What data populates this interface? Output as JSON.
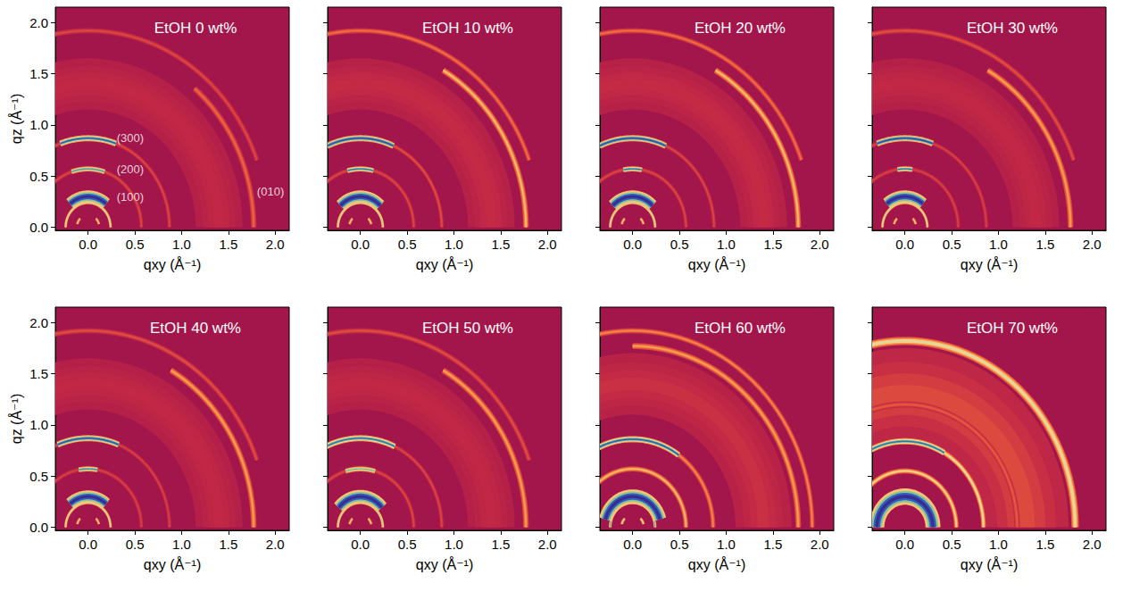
{
  "chart_data": [
    {
      "type": "giwaxs",
      "title": "EtOH 0 wt%",
      "xlabel": "qxy (Å⁻¹)",
      "ylabel": "qz (Å⁻¹)",
      "xlim": [
        -0.35,
        2.15
      ],
      "ylim": [
        -0.03,
        2.15
      ],
      "xticks": [
        {
          "value": 0,
          "label": "0.0"
        },
        0.5,
        {
          "value": 1,
          "label": "1.0"
        },
        1.5,
        {
          "value": 2,
          "label": "2.0"
        }
      ],
      "yticks": [
        {
          "value": 0,
          "label": "0.0"
        },
        0.5,
        {
          "value": 1,
          "label": "1.0"
        },
        1.5,
        {
          "value": 2,
          "label": "2.0"
        }
      ],
      "features": [
        {
          "q": 1.4,
          "width": 0.5,
          "az": [
            0,
            180
          ],
          "intensity": 0.18
        },
        {
          "q": 0.12,
          "width": 0.03,
          "az": [
            15,
            45
          ],
          "intensity": 0.6
        },
        {
          "q": 0.12,
          "width": 0.03,
          "az": [
            135,
            165
          ],
          "intensity": 0.6
        },
        {
          "q": 0.24,
          "width": 0.03,
          "az": [
            0,
            180
          ],
          "intensity": 0.7
        },
        {
          "q": 0.3,
          "width": 0.12,
          "az": [
            50,
            130
          ],
          "intensity": 1.0
        },
        {
          "q": 0.57,
          "width": 0.04,
          "az": [
            0,
            180
          ],
          "intensity": 0.3
        },
        {
          "q": 0.57,
          "width": 0.05,
          "az": [
            72,
            108
          ],
          "intensity": 0.8
        },
        {
          "q": 0.87,
          "width": 0.04,
          "az": [
            0,
            180
          ],
          "intensity": 0.3
        },
        {
          "q": 0.87,
          "width": 0.06,
          "az": [
            70,
            110
          ],
          "intensity": 0.88
        },
        {
          "q": 1.77,
          "width": 0.06,
          "az": [
            0,
            50
          ],
          "intensity": 0.38
        },
        {
          "q": 1.92,
          "width": 0.05,
          "az": [
            20,
            180
          ],
          "intensity": 0.3
        }
      ],
      "annotations": [
        {
          "text": "(300)",
          "x": 0.45,
          "y": 0.87
        },
        {
          "text": "(200)",
          "x": 0.45,
          "y": 0.57
        },
        {
          "text": "(100)",
          "x": 0.45,
          "y": 0.3
        },
        {
          "text": "(010)",
          "x": 1.95,
          "y": 0.35
        }
      ]
    },
    {
      "type": "giwaxs",
      "title": "EtOH 10 wt%",
      "xlabel": "qxy (Å⁻¹)",
      "tick_labels": "x",
      "xlim": [
        -0.35,
        2.15
      ],
      "ylim": [
        -0.03,
        2.15
      ],
      "xticks": [
        {
          "value": 0,
          "label": "0.0"
        },
        0.5,
        {
          "value": 1,
          "label": "1.0"
        },
        1.5,
        {
          "value": 2,
          "label": "2.0"
        }
      ],
      "yticks": [
        {
          "value": 0,
          "label": "0.0"
        },
        0.5,
        {
          "value": 1,
          "label": "1.0"
        },
        1.5,
        {
          "value": 2,
          "label": "2.0"
        }
      ],
      "features": [
        {
          "q": 1.4,
          "width": 0.5,
          "az": [
            0,
            180
          ],
          "intensity": 0.2
        },
        {
          "q": 0.12,
          "width": 0.03,
          "az": [
            15,
            45
          ],
          "intensity": 0.6
        },
        {
          "q": 0.12,
          "width": 0.03,
          "az": [
            135,
            165
          ],
          "intensity": 0.6
        },
        {
          "q": 0.24,
          "width": 0.03,
          "az": [
            0,
            180
          ],
          "intensity": 0.72
        },
        {
          "q": 0.3,
          "width": 0.12,
          "az": [
            45,
            135
          ],
          "intensity": 1.0
        },
        {
          "q": 0.57,
          "width": 0.04,
          "az": [
            0,
            180
          ],
          "intensity": 0.3
        },
        {
          "q": 0.57,
          "width": 0.05,
          "az": [
            76,
            104
          ],
          "intensity": 0.85
        },
        {
          "q": 0.87,
          "width": 0.04,
          "az": [
            0,
            180
          ],
          "intensity": 0.32
        },
        {
          "q": 0.87,
          "width": 0.06,
          "az": [
            66,
            114
          ],
          "intensity": 0.92
        },
        {
          "q": 1.77,
          "width": 0.06,
          "az": [
            0,
            60
          ],
          "intensity": 0.55
        },
        {
          "q": 1.92,
          "width": 0.05,
          "az": [
            20,
            180
          ],
          "intensity": 0.4
        }
      ],
      "annotations": []
    },
    {
      "type": "giwaxs",
      "title": "EtOH 20 wt%",
      "xlabel": "qxy (Å⁻¹)",
      "tick_labels": "x",
      "xlim": [
        -0.35,
        2.15
      ],
      "ylim": [
        -0.03,
        2.15
      ],
      "xticks": [
        {
          "value": 0,
          "label": "0.0"
        },
        0.5,
        {
          "value": 1,
          "label": "1.0"
        },
        1.5,
        {
          "value": 2,
          "label": "2.0"
        }
      ],
      "yticks": [
        {
          "value": 0,
          "label": "0.0"
        },
        0.5,
        {
          "value": 1,
          "label": "1.0"
        },
        1.5,
        {
          "value": 2,
          "label": "2.0"
        }
      ],
      "features": [
        {
          "q": 1.4,
          "width": 0.5,
          "az": [
            0,
            180
          ],
          "intensity": 0.2
        },
        {
          "q": 0.12,
          "width": 0.03,
          "az": [
            15,
            45
          ],
          "intensity": 0.6
        },
        {
          "q": 0.12,
          "width": 0.03,
          "az": [
            135,
            165
          ],
          "intensity": 0.6
        },
        {
          "q": 0.24,
          "width": 0.03,
          "az": [
            0,
            180
          ],
          "intensity": 0.72
        },
        {
          "q": 0.3,
          "width": 0.12,
          "az": [
            45,
            135
          ],
          "intensity": 1.0
        },
        {
          "q": 0.57,
          "width": 0.04,
          "az": [
            0,
            180
          ],
          "intensity": 0.3
        },
        {
          "q": 0.57,
          "width": 0.05,
          "az": [
            80,
            100
          ],
          "intensity": 0.85
        },
        {
          "q": 0.87,
          "width": 0.04,
          "az": [
            0,
            180
          ],
          "intensity": 0.3
        },
        {
          "q": 0.87,
          "width": 0.06,
          "az": [
            66,
            114
          ],
          "intensity": 0.92
        },
        {
          "q": 1.77,
          "width": 0.06,
          "az": [
            0,
            60
          ],
          "intensity": 0.55
        },
        {
          "q": 1.92,
          "width": 0.05,
          "az": [
            20,
            180
          ],
          "intensity": 0.4
        }
      ],
      "annotations": []
    },
    {
      "type": "giwaxs",
      "title": "EtOH 30 wt%",
      "xlabel": "qxy (Å⁻¹)",
      "tick_labels": "x",
      "xlim": [
        -0.35,
        2.15
      ],
      "ylim": [
        -0.03,
        2.15
      ],
      "xticks": [
        {
          "value": 0,
          "label": "0.0"
        },
        0.5,
        {
          "value": 1,
          "label": "1.0"
        },
        1.5,
        {
          "value": 2,
          "label": "2.0"
        }
      ],
      "yticks": [
        {
          "value": 0,
          "label": "0.0"
        },
        0.5,
        {
          "value": 1,
          "label": "1.0"
        },
        1.5,
        {
          "value": 2,
          "label": "2.0"
        }
      ],
      "features": [
        {
          "q": 1.4,
          "width": 0.5,
          "az": [
            0,
            180
          ],
          "intensity": 0.18
        },
        {
          "q": 0.12,
          "width": 0.03,
          "az": [
            15,
            45
          ],
          "intensity": 0.6
        },
        {
          "q": 0.12,
          "width": 0.03,
          "az": [
            135,
            165
          ],
          "intensity": 0.6
        },
        {
          "q": 0.24,
          "width": 0.03,
          "az": [
            0,
            180
          ],
          "intensity": 0.7
        },
        {
          "q": 0.3,
          "width": 0.12,
          "az": [
            50,
            130
          ],
          "intensity": 1.0
        },
        {
          "q": 0.57,
          "width": 0.04,
          "az": [
            0,
            180
          ],
          "intensity": 0.28
        },
        {
          "q": 0.57,
          "width": 0.05,
          "az": [
            82,
            98
          ],
          "intensity": 0.85
        },
        {
          "q": 0.87,
          "width": 0.04,
          "az": [
            0,
            180
          ],
          "intensity": 0.28
        },
        {
          "q": 0.87,
          "width": 0.06,
          "az": [
            70,
            110
          ],
          "intensity": 0.92
        },
        {
          "q": 1.77,
          "width": 0.06,
          "az": [
            0,
            60
          ],
          "intensity": 0.5
        },
        {
          "q": 1.92,
          "width": 0.05,
          "az": [
            20,
            180
          ],
          "intensity": 0.32
        }
      ],
      "annotations": []
    },
    {
      "type": "giwaxs",
      "title": "EtOH 40 wt%",
      "xlabel": "qxy (Å⁻¹)",
      "ylabel": "qz (Å⁻¹)",
      "xlim": [
        -0.35,
        2.15
      ],
      "ylim": [
        -0.03,
        2.15
      ],
      "xticks": [
        {
          "value": 0,
          "label": "0.0"
        },
        0.5,
        {
          "value": 1,
          "label": "1.0"
        },
        1.5,
        {
          "value": 2,
          "label": "2.0"
        }
      ],
      "yticks": [
        {
          "value": 0,
          "label": "0.0"
        },
        0.5,
        {
          "value": 1,
          "label": "1.0"
        },
        1.5,
        {
          "value": 2,
          "label": "2.0"
        }
      ],
      "features": [
        {
          "q": 1.4,
          "width": 0.5,
          "az": [
            0,
            180
          ],
          "intensity": 0.18
        },
        {
          "q": 0.12,
          "width": 0.03,
          "az": [
            15,
            45
          ],
          "intensity": 0.6
        },
        {
          "q": 0.12,
          "width": 0.03,
          "az": [
            135,
            165
          ],
          "intensity": 0.6
        },
        {
          "q": 0.24,
          "width": 0.03,
          "az": [
            0,
            180
          ],
          "intensity": 0.7
        },
        {
          "q": 0.3,
          "width": 0.12,
          "az": [
            50,
            130
          ],
          "intensity": 1.0
        },
        {
          "q": 0.57,
          "width": 0.04,
          "az": [
            0,
            180
          ],
          "intensity": 0.28
        },
        {
          "q": 0.57,
          "width": 0.05,
          "az": [
            80,
            100
          ],
          "intensity": 0.82
        },
        {
          "q": 0.87,
          "width": 0.04,
          "az": [
            0,
            180
          ],
          "intensity": 0.28
        },
        {
          "q": 0.87,
          "width": 0.06,
          "az": [
            68,
            112
          ],
          "intensity": 0.9
        },
        {
          "q": 1.77,
          "width": 0.06,
          "az": [
            0,
            60
          ],
          "intensity": 0.5
        },
        {
          "q": 1.92,
          "width": 0.05,
          "az": [
            20,
            180
          ],
          "intensity": 0.32
        }
      ],
      "annotations": []
    },
    {
      "type": "giwaxs",
      "title": "EtOH 50 wt%",
      "xlabel": "qxy (Å⁻¹)",
      "tick_labels": "x",
      "xlim": [
        -0.35,
        2.15
      ],
      "ylim": [
        -0.03,
        2.15
      ],
      "xticks": [
        {
          "value": 0,
          "label": "0.0"
        },
        0.5,
        {
          "value": 1,
          "label": "1.0"
        },
        1.5,
        {
          "value": 2,
          "label": "2.0"
        }
      ],
      "yticks": [
        {
          "value": 0,
          "label": "0.0"
        },
        0.5,
        {
          "value": 1,
          "label": "1.0"
        },
        1.5,
        {
          "value": 2,
          "label": "2.0"
        }
      ],
      "features": [
        {
          "q": 1.4,
          "width": 0.5,
          "az": [
            0,
            180
          ],
          "intensity": 0.18
        },
        {
          "q": 0.12,
          "width": 0.03,
          "az": [
            15,
            45
          ],
          "intensity": 0.6
        },
        {
          "q": 0.12,
          "width": 0.03,
          "az": [
            135,
            165
          ],
          "intensity": 0.6
        },
        {
          "q": 0.24,
          "width": 0.03,
          "az": [
            0,
            180
          ],
          "intensity": 0.72
        },
        {
          "q": 0.3,
          "width": 0.13,
          "az": [
            40,
            140
          ],
          "intensity": 1.0
        },
        {
          "q": 0.57,
          "width": 0.04,
          "az": [
            0,
            180
          ],
          "intensity": 0.3
        },
        {
          "q": 0.57,
          "width": 0.05,
          "az": [
            74,
            106
          ],
          "intensity": 0.75
        },
        {
          "q": 0.87,
          "width": 0.04,
          "az": [
            0,
            180
          ],
          "intensity": 0.3
        },
        {
          "q": 0.87,
          "width": 0.06,
          "az": [
            65,
            115
          ],
          "intensity": 0.85
        },
        {
          "q": 1.77,
          "width": 0.06,
          "az": [
            0,
            60
          ],
          "intensity": 0.5
        },
        {
          "q": 1.92,
          "width": 0.05,
          "az": [
            20,
            180
          ],
          "intensity": 0.32
        }
      ],
      "annotations": []
    },
    {
      "type": "giwaxs",
      "title": "EtOH 60 wt%",
      "xlabel": "qxy (Å⁻¹)",
      "tick_labels": "x",
      "xlim": [
        -0.35,
        2.15
      ],
      "ylim": [
        -0.03,
        2.15
      ],
      "xticks": [
        {
          "value": 0,
          "label": "0.0"
        },
        0.5,
        {
          "value": 1,
          "label": "1.0"
        },
        1.5,
        {
          "value": 2,
          "label": "2.0"
        }
      ],
      "yticks": [
        {
          "value": 0,
          "label": "0.0"
        },
        0.5,
        {
          "value": 1,
          "label": "1.0"
        },
        1.5,
        {
          "value": 2,
          "label": "2.0"
        }
      ],
      "features": [
        {
          "q": 1.4,
          "width": 0.6,
          "az": [
            0,
            180
          ],
          "intensity": 0.22
        },
        {
          "q": 0.12,
          "width": 0.03,
          "az": [
            15,
            45
          ],
          "intensity": 0.65
        },
        {
          "q": 0.12,
          "width": 0.03,
          "az": [
            135,
            165
          ],
          "intensity": 0.65
        },
        {
          "q": 0.24,
          "width": 0.03,
          "az": [
            0,
            180
          ],
          "intensity": 0.8
        },
        {
          "q": 0.3,
          "width": 0.14,
          "az": [
            15,
            165
          ],
          "intensity": 1.0
        },
        {
          "q": 0.57,
          "width": 0.05,
          "az": [
            0,
            180
          ],
          "intensity": 0.55
        },
        {
          "q": 0.86,
          "width": 0.05,
          "az": [
            0,
            180
          ],
          "intensity": 0.45
        },
        {
          "q": 0.86,
          "width": 0.06,
          "az": [
            55,
            125
          ],
          "intensity": 0.88
        },
        {
          "q": 1.77,
          "width": 0.06,
          "az": [
            0,
            90
          ],
          "intensity": 0.5
        },
        {
          "q": 1.92,
          "width": 0.05,
          "az": [
            0,
            180
          ],
          "intensity": 0.45
        }
      ],
      "annotations": []
    },
    {
      "type": "giwaxs",
      "title": "EtOH 70 wt%",
      "xlabel": "qxy (Å⁻¹)",
      "tick_labels": "x",
      "xlim": [
        -0.35,
        2.15
      ],
      "ylim": [
        -0.03,
        2.15
      ],
      "xticks": [
        {
          "value": 0,
          "label": "0.0"
        },
        0.5,
        {
          "value": 1,
          "label": "1.0"
        },
        1.5,
        {
          "value": 2,
          "label": "2.0"
        }
      ],
      "yticks": [
        {
          "value": 0,
          "label": "0.0"
        },
        0.5,
        {
          "value": 1,
          "label": "1.0"
        },
        1.5,
        {
          "value": 2,
          "label": "2.0"
        }
      ],
      "features": [
        {
          "q": 1.3,
          "width": 0.9,
          "az": [
            0,
            180
          ],
          "intensity": 0.3
        },
        {
          "q": 0.24,
          "width": 0.03,
          "az": [
            0,
            180
          ],
          "intensity": 0.85
        },
        {
          "q": 0.3,
          "width": 0.16,
          "az": [
            0,
            180
          ],
          "intensity": 1.0
        },
        {
          "q": 0.55,
          "width": 0.05,
          "az": [
            0,
            180
          ],
          "intensity": 0.6
        },
        {
          "q": 0.84,
          "width": 0.05,
          "az": [
            0,
            180
          ],
          "intensity": 0.65
        },
        {
          "q": 0.84,
          "width": 0.06,
          "az": [
            60,
            120
          ],
          "intensity": 0.85
        },
        {
          "q": 1.2,
          "width": 0.06,
          "az": [
            0,
            180
          ],
          "intensity": 0.35
        },
        {
          "q": 1.82,
          "width": 0.08,
          "az": [
            0,
            180
          ],
          "intensity": 0.65
        }
      ],
      "annotations": []
    }
  ]
}
